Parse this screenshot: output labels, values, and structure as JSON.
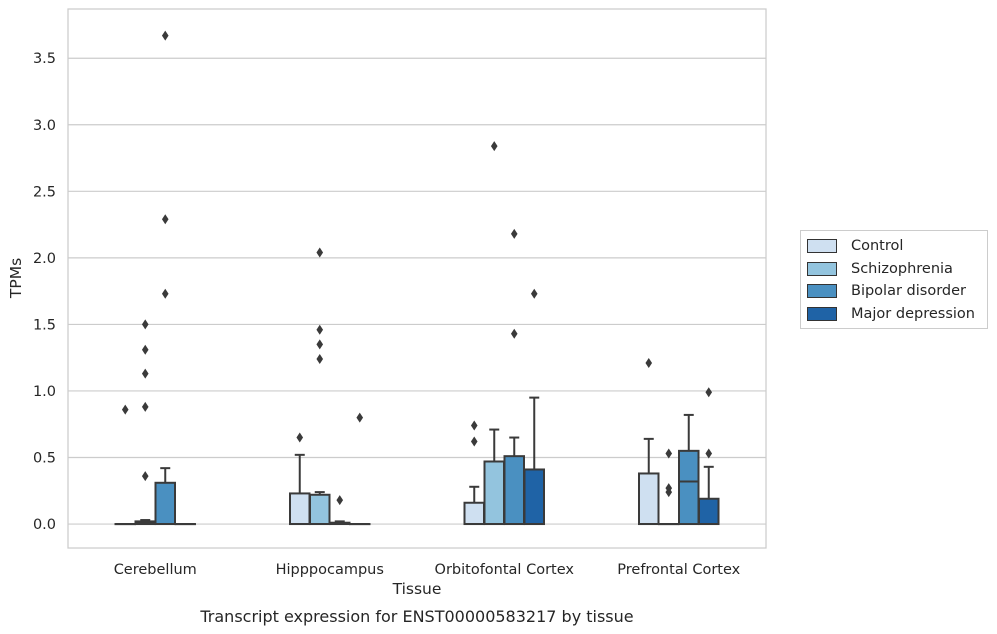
{
  "chart_data": {
    "type": "box",
    "caption": "Transcript expression for ENST00000583217 by tissue",
    "xlabel": "Tissue",
    "ylabel": "TPMs",
    "ylim": [
      -0.18,
      3.87
    ],
    "yticks": [
      0.0,
      0.5,
      1.0,
      1.5,
      2.0,
      2.5,
      3.0,
      3.5
    ],
    "ytick_labels": [
      "0.0",
      "0.5",
      "1.0",
      "1.5",
      "2.0",
      "2.5",
      "3.0",
      "3.5"
    ],
    "grid": "horizontal",
    "legend_position": "right",
    "categories": [
      "Cerebellum",
      "Hipppocampus",
      "Orbitofontal Cortex",
      "Prefrontal Cortex"
    ],
    "series": [
      {
        "name": "Control",
        "color": "#cfe0f1",
        "boxes": [
          {
            "q1": 0.0,
            "median": 0.0,
            "q3": 0.0,
            "whislo": 0.0,
            "whishi": 0.0,
            "fliers": [
              0.86
            ]
          },
          {
            "q1": 0.0,
            "median": 0.0,
            "q3": 0.23,
            "whislo": 0.0,
            "whishi": 0.52,
            "fliers": [
              0.65
            ]
          },
          {
            "q1": 0.0,
            "median": 0.0,
            "q3": 0.16,
            "whislo": 0.0,
            "whishi": 0.28,
            "fliers": [
              0.62,
              0.74
            ]
          },
          {
            "q1": 0.0,
            "median": 0.0,
            "q3": 0.38,
            "whislo": 0.0,
            "whishi": 0.64,
            "fliers": [
              1.21
            ]
          }
        ]
      },
      {
        "name": "Schizophrenia",
        "color": "#93c4de",
        "boxes": [
          {
            "q1": 0.0,
            "median": 0.01,
            "q3": 0.02,
            "whislo": 0.0,
            "whishi": 0.03,
            "fliers": [
              0.36,
              0.88,
              1.13,
              1.31,
              1.5
            ]
          },
          {
            "q1": 0.0,
            "median": 0.0,
            "q3": 0.22,
            "whislo": 0.0,
            "whishi": 0.24,
            "fliers": [
              1.24,
              1.35,
              1.46,
              2.04
            ]
          },
          {
            "q1": 0.0,
            "median": 0.0,
            "q3": 0.47,
            "whislo": 0.0,
            "whishi": 0.71,
            "fliers": [
              2.84
            ]
          },
          {
            "q1": 0.0,
            "median": 0.0,
            "q3": 0.0,
            "whislo": 0.0,
            "whishi": 0.0,
            "fliers": [
              0.24,
              0.27,
              0.53
            ]
          }
        ]
      },
      {
        "name": "Bipolar disorder",
        "color": "#4a90c1",
        "boxes": [
          {
            "q1": 0.0,
            "median": 0.0,
            "q3": 0.31,
            "whislo": 0.0,
            "whishi": 0.42,
            "fliers": [
              1.73,
              2.29,
              3.67
            ]
          },
          {
            "q1": 0.0,
            "median": 0.0,
            "q3": 0.01,
            "whislo": 0.0,
            "whishi": 0.02,
            "fliers": [
              0.18
            ]
          },
          {
            "q1": 0.0,
            "median": 0.0,
            "q3": 0.51,
            "whislo": 0.0,
            "whishi": 0.65,
            "fliers": [
              1.43,
              2.18
            ]
          },
          {
            "q1": 0.0,
            "median": 0.32,
            "q3": 0.55,
            "whislo": 0.0,
            "whishi": 0.82,
            "fliers": []
          }
        ]
      },
      {
        "name": "Major depression",
        "color": "#1f63a6",
        "boxes": [
          {
            "q1": 0.0,
            "median": 0.0,
            "q3": 0.0,
            "whislo": 0.0,
            "whishi": 0.0,
            "fliers": []
          },
          {
            "q1": 0.0,
            "median": 0.0,
            "q3": 0.0,
            "whislo": 0.0,
            "whishi": 0.0,
            "fliers": [
              0.8
            ]
          },
          {
            "q1": 0.0,
            "median": 0.0,
            "q3": 0.41,
            "whislo": 0.0,
            "whishi": 0.95,
            "fliers": [
              1.73
            ]
          },
          {
            "q1": 0.0,
            "median": 0.0,
            "q3": 0.19,
            "whislo": 0.0,
            "whishi": 0.43,
            "fliers": [
              0.53,
              0.99
            ]
          }
        ]
      }
    ]
  }
}
